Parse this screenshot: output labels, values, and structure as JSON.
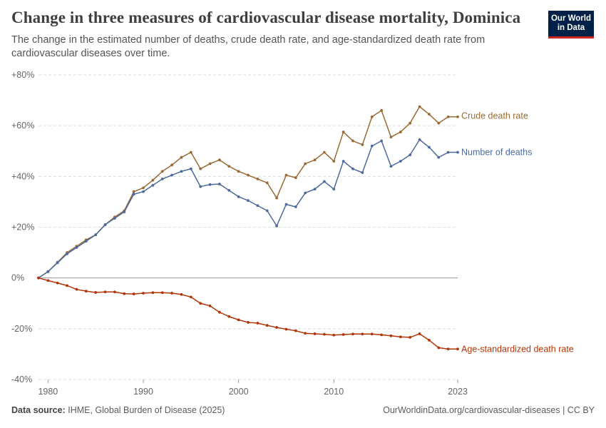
{
  "header": {
    "title": "Change in three measures of cardiovascular disease mortality, Dominica",
    "subtitle": "The change in the estimated number of deaths, crude death rate, and age-standardized death rate from cardiovascular diseases over time.",
    "logo_line1": "Our World",
    "logo_line2": "in Data"
  },
  "footer": {
    "source_label": "Data source:",
    "source_text": "IHME, Global Burden of Disease (2025)",
    "url": "OurWorldinData.org/cardiovascular-diseases | CC BY"
  },
  "colors": {
    "crude": "#9a6a34",
    "deaths": "#4c6a9c",
    "age_std": "#b13507",
    "grid": "#dddddd",
    "axis_text": "#666666"
  },
  "chart_data": {
    "type": "line",
    "xlim": [
      1979,
      2023
    ],
    "ylim": [
      -40,
      80
    ],
    "x_ticks": [
      {
        "value": 1980,
        "label": "1980"
      },
      {
        "value": 1990,
        "label": "1990"
      },
      {
        "value": 2000,
        "label": "2000"
      },
      {
        "value": 2010,
        "label": "2010"
      },
      {
        "value": 2023,
        "label": "2023"
      }
    ],
    "y_ticks": [
      {
        "value": 80,
        "label": "+80%"
      },
      {
        "value": 60,
        "label": "+60%"
      },
      {
        "value": 40,
        "label": "+40%"
      },
      {
        "value": 20,
        "label": "+20%"
      },
      {
        "value": 0,
        "label": "0%"
      },
      {
        "value": -20,
        "label": "-20%"
      },
      {
        "value": -40,
        "label": "-40%"
      }
    ],
    "grid": true,
    "legend": "inline labels at line ends",
    "x": [
      1979,
      1980,
      1981,
      1982,
      1983,
      1984,
      1985,
      1986,
      1987,
      1988,
      1989,
      1990,
      1991,
      1992,
      1993,
      1994,
      1995,
      1996,
      1997,
      1998,
      1999,
      2000,
      2001,
      2002,
      2003,
      2004,
      2005,
      2006,
      2007,
      2008,
      2009,
      2010,
      2011,
      2012,
      2013,
      2014,
      2015,
      2016,
      2017,
      2018,
      2019,
      2020,
      2021,
      2022,
      2023
    ],
    "series": [
      {
        "name": "Crude death rate",
        "color_key": "crude",
        "values": [
          0,
          2.5,
          6.2,
          10,
          12.5,
          15,
          17,
          21,
          24,
          26.5,
          34,
          35.5,
          38.5,
          42,
          44.5,
          47.5,
          49.5,
          43,
          45,
          46.5,
          44,
          42,
          40.5,
          39,
          37.5,
          31.5,
          40.5,
          39.5,
          45,
          46.5,
          49.5,
          46,
          57.5,
          54,
          52.5,
          63.5,
          66,
          55.5,
          57.5,
          61,
          67.5,
          64.5,
          61,
          63.5,
          63.5
        ]
      },
      {
        "name": "Number of deaths",
        "color_key": "deaths",
        "values": [
          0,
          2.5,
          6,
          9.5,
          12,
          14.5,
          17,
          21,
          23.5,
          26,
          33,
          34,
          36.5,
          39,
          40.5,
          42,
          43,
          36,
          36.8,
          37,
          34.5,
          32,
          30.5,
          28.5,
          26.5,
          20.5,
          29,
          28,
          33.5,
          35,
          38,
          35,
          46,
          43,
          41.5,
          52,
          54,
          44,
          46,
          48.5,
          54.5,
          51.5,
          47.5,
          49.5,
          49.5
        ]
      },
      {
        "name": "Age-standardized death rate",
        "color_key": "age_std",
        "values": [
          0,
          -1,
          -2,
          -3,
          -4.5,
          -5.2,
          -5.7,
          -5.5,
          -5.5,
          -6.2,
          -6.3,
          -6,
          -5.8,
          -5.8,
          -6,
          -6.5,
          -7.5,
          -10,
          -11,
          -13.5,
          -15.2,
          -16.5,
          -17.5,
          -17.8,
          -18.7,
          -19.5,
          -20.2,
          -20.8,
          -21.8,
          -22,
          -22.2,
          -22.5,
          -22.3,
          -22.1,
          -22.1,
          -22.1,
          -22.4,
          -22.8,
          -23.2,
          -23.4,
          -22,
          -24.5,
          -27.5,
          -28,
          -28
        ]
      }
    ]
  }
}
